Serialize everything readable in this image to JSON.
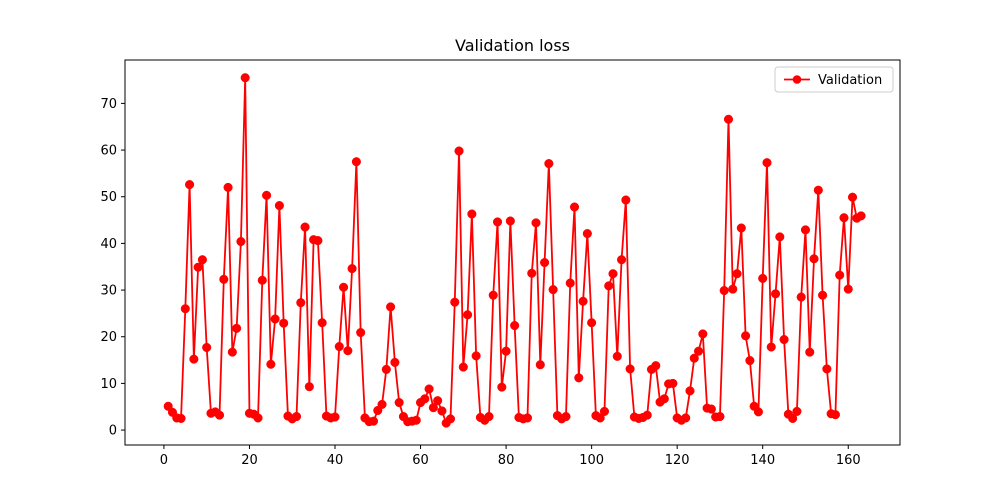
{
  "chart_data": {
    "type": "line",
    "title": "Validation loss",
    "xlabel": "",
    "ylabel": "",
    "xlim": [
      -9.1,
      172.1
    ],
    "ylim": [
      -3.2,
      79.3
    ],
    "x_ticks": [
      0,
      20,
      40,
      60,
      80,
      100,
      120,
      140,
      160
    ],
    "y_ticks": [
      0,
      10,
      20,
      30,
      40,
      50,
      60,
      70
    ],
    "grid": false,
    "legend_position": "top-right",
    "series": [
      {
        "name": "Validation",
        "color": "#ff0000",
        "marker": "circle",
        "x": [
          1,
          2,
          3,
          4,
          5,
          6,
          7,
          8,
          9,
          10,
          11,
          12,
          13,
          14,
          15,
          16,
          17,
          18,
          19,
          20,
          21,
          22,
          23,
          24,
          25,
          26,
          27,
          28,
          29,
          30,
          31,
          32,
          33,
          34,
          35,
          36,
          37,
          38,
          39,
          40,
          41,
          42,
          43,
          44,
          45,
          46,
          47,
          48,
          49,
          50,
          51,
          52,
          53,
          54,
          55,
          56,
          57,
          58,
          59,
          60,
          61,
          62,
          63,
          64,
          65,
          66,
          67,
          68,
          69,
          70,
          71,
          72,
          73,
          74,
          75,
          76,
          77,
          78,
          79,
          80,
          81,
          82,
          83,
          84,
          85,
          86,
          87,
          88,
          89,
          90,
          91,
          92,
          93,
          94,
          95,
          96,
          97,
          98,
          99,
          100,
          101,
          102,
          103,
          104,
          105,
          106,
          107,
          108,
          109,
          110,
          111,
          112,
          113,
          114,
          115,
          116,
          117,
          118,
          119,
          120,
          121,
          122,
          123,
          124,
          125,
          126,
          127,
          128,
          129,
          130,
          131,
          132,
          133,
          134,
          135,
          136,
          137,
          138,
          139,
          140,
          141,
          142,
          143,
          144,
          145,
          146,
          147,
          148,
          149,
          150,
          151,
          152,
          153,
          154,
          155,
          156,
          157,
          158,
          159,
          160,
          161,
          162,
          163
        ],
        "values": [
          5.1,
          3.8,
          2.6,
          2.5,
          26.0,
          52.6,
          15.2,
          34.9,
          36.5,
          17.7,
          3.6,
          3.9,
          3.2,
          32.3,
          52.0,
          16.7,
          21.8,
          40.4,
          75.5,
          3.6,
          3.4,
          2.6,
          32.1,
          50.3,
          14.1,
          23.8,
          48.1,
          22.9,
          3.0,
          2.4,
          2.9,
          27.3,
          43.5,
          9.3,
          40.8,
          40.6,
          23.0,
          3.0,
          2.6,
          2.8,
          17.9,
          30.6,
          17.0,
          34.6,
          57.5,
          20.9,
          2.6,
          1.8,
          1.9,
          4.2,
          5.5,
          13.0,
          26.4,
          14.5,
          5.9,
          2.9,
          1.8,
          1.9,
          2.1,
          5.9,
          6.7,
          8.8,
          4.8,
          6.3,
          4.1,
          1.5,
          2.4,
          27.4,
          59.8,
          13.5,
          24.7,
          46.3,
          15.9,
          2.7,
          2.1,
          2.9,
          28.9,
          44.6,
          9.2,
          16.9,
          44.8,
          22.4,
          2.7,
          2.4,
          2.6,
          33.6,
          44.4,
          14.0,
          35.9,
          57.1,
          30.1,
          3.1,
          2.4,
          2.9,
          31.5,
          47.8,
          11.2,
          27.6,
          42.1,
          23.0,
          3.1,
          2.6,
          4.0,
          30.9,
          33.5,
          15.8,
          36.5,
          49.3,
          13.1,
          2.8,
          2.5,
          2.7,
          3.2,
          13.0,
          13.8,
          6.0,
          6.7,
          9.9,
          10.0,
          2.6,
          2.1,
          2.6,
          8.4,
          15.4,
          16.9,
          20.6,
          4.7,
          4.5,
          2.8,
          2.9,
          29.9,
          66.6,
          30.2,
          33.5,
          43.3,
          20.2,
          14.9,
          5.1,
          3.9,
          32.5,
          57.3,
          17.8,
          29.2,
          41.4,
          19.4,
          3.4,
          2.5,
          4.0,
          28.5,
          42.9,
          16.7,
          36.7,
          51.4,
          28.9,
          13.1,
          3.5,
          3.3,
          33.2,
          45.5,
          30.2,
          49.9,
          45.4,
          45.9
        ]
      }
    ]
  }
}
